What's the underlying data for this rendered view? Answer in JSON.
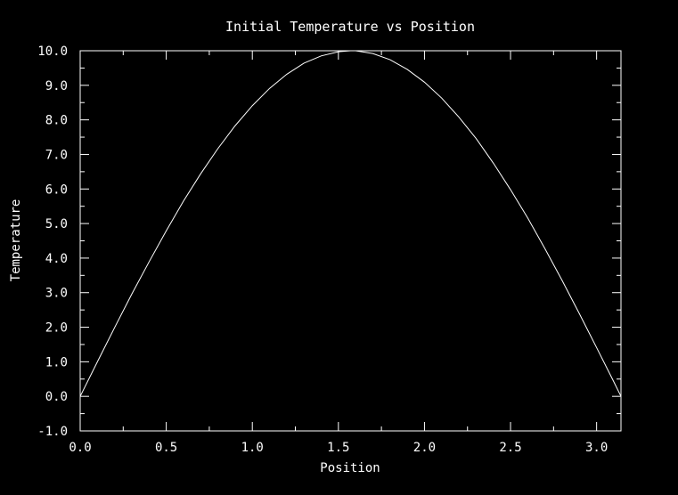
{
  "chart_data": {
    "type": "line",
    "title": "Initial Temperature vs Position",
    "xlabel": "Position",
    "ylabel": "Temperature",
    "xlim": [
      0.0,
      3.14159
    ],
    "ylim": [
      -1.0,
      10.0
    ],
    "grid": false,
    "x_ticks": [
      "0.0",
      "0.5",
      "1.0",
      "1.5",
      "2.0",
      "2.5",
      "3.0"
    ],
    "y_ticks": [
      "-1.0",
      "0.0",
      "1.0",
      "2.0",
      "3.0",
      "4.0",
      "5.0",
      "6.0",
      "7.0",
      "8.0",
      "9.0",
      "10.0"
    ],
    "series": [
      {
        "x": [
          0.0,
          0.1,
          0.2,
          0.3,
          0.4,
          0.5,
          0.6,
          0.7,
          0.8,
          0.9,
          1.0,
          1.1,
          1.2,
          1.3,
          1.4,
          1.5,
          1.5708,
          1.6,
          1.7,
          1.8,
          1.9,
          2.0,
          2.1,
          2.2,
          2.3,
          2.4,
          2.5,
          2.6,
          2.7,
          2.8,
          2.9,
          3.0,
          3.1,
          3.1416
        ],
        "y": [
          0.0,
          1.0,
          1.99,
          2.96,
          3.89,
          4.79,
          5.65,
          6.44,
          7.17,
          7.83,
          8.41,
          8.91,
          9.32,
          9.64,
          9.85,
          9.97,
          10.0,
          10.0,
          9.92,
          9.74,
          9.46,
          9.09,
          8.63,
          8.08,
          7.46,
          6.75,
          5.98,
          5.16,
          4.27,
          3.35,
          2.39,
          1.41,
          0.42,
          0.0
        ],
        "color": "#ffffff"
      }
    ]
  }
}
